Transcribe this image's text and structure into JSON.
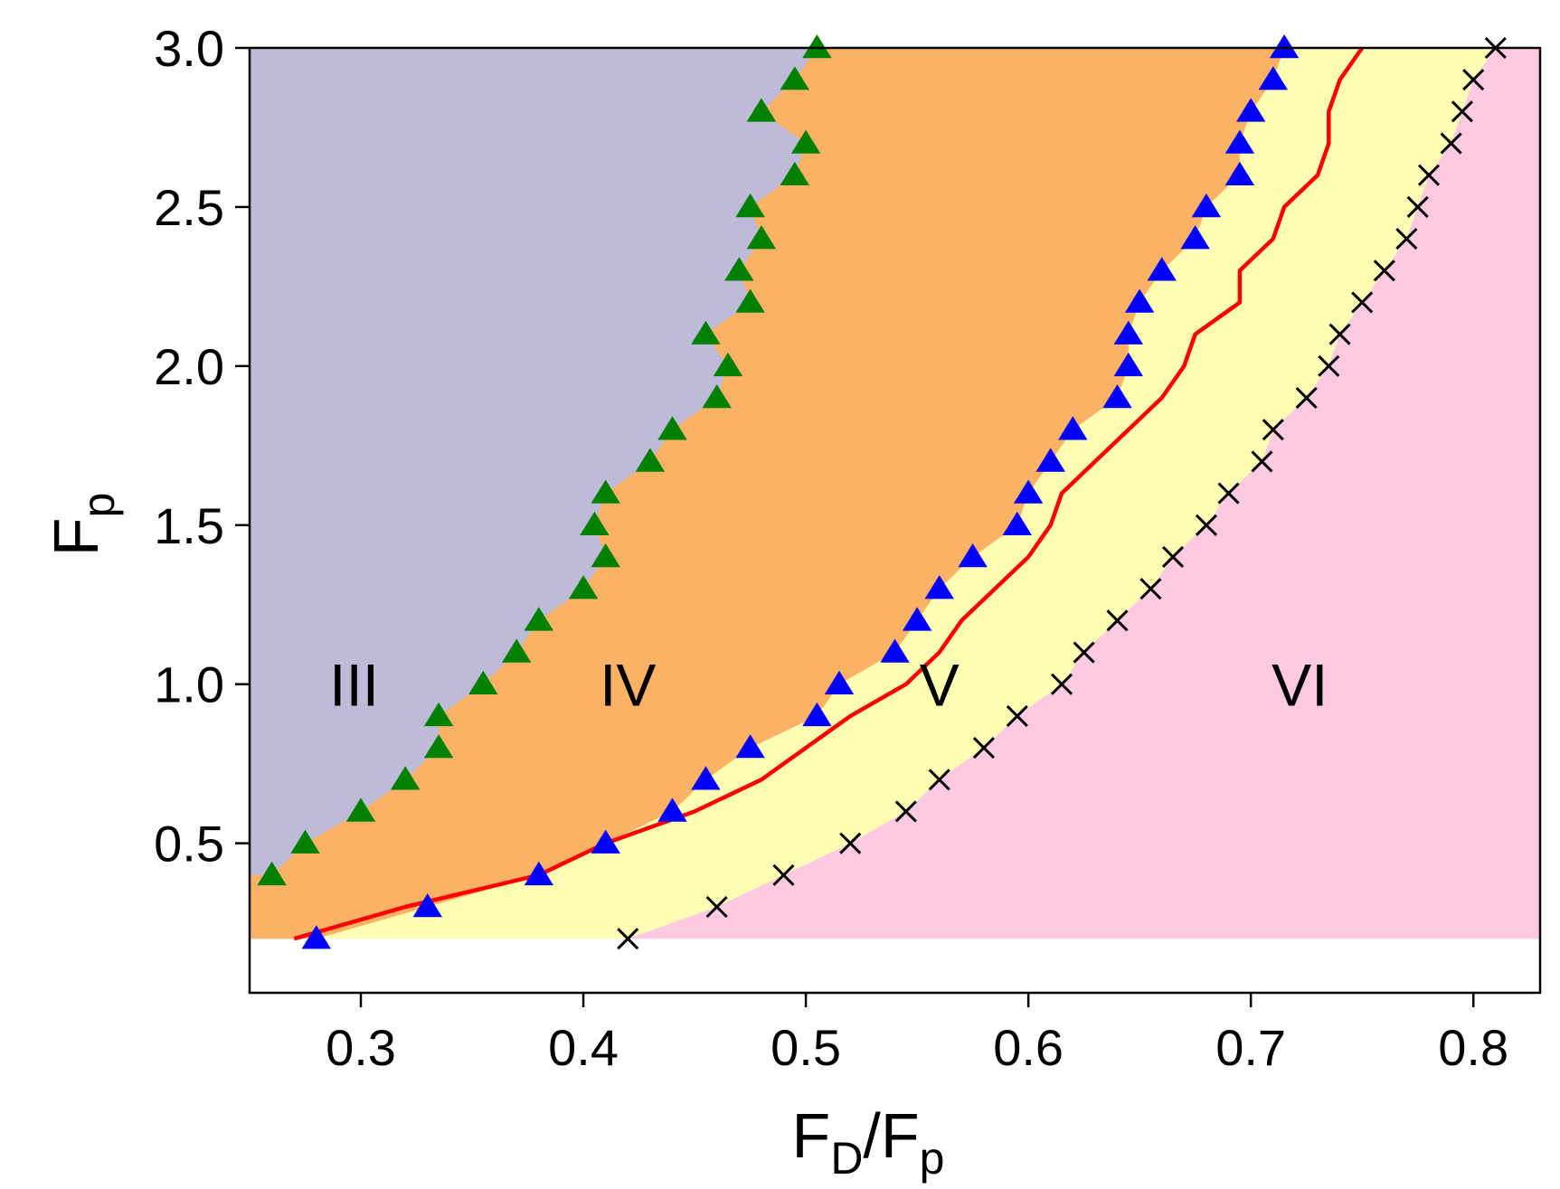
{
  "chart_data": {
    "type": "scatter",
    "title": "",
    "xlabel": "F_D/F_p",
    "ylabel": "F_p",
    "x_label_parts": {
      "f1": "F",
      "s1": "D",
      "sep": "/",
      "f2": "F",
      "s2": "p"
    },
    "y_label_parts": {
      "f": "F",
      "s": "p"
    },
    "xlim": [
      0.25,
      0.83
    ],
    "ylim": [
      0.03,
      3.0
    ],
    "grid": false,
    "x_ticks": [
      {
        "value": 0.3,
        "label": "0.3"
      },
      {
        "value": 0.4,
        "label": "0.4"
      },
      {
        "value": 0.5,
        "label": "0.5"
      },
      {
        "value": 0.6,
        "label": "0.6"
      },
      {
        "value": 0.7,
        "label": "0.7"
      },
      {
        "value": 0.8,
        "label": "0.8"
      }
    ],
    "y_ticks": [
      {
        "value": 0.5,
        "label": "0.5"
      },
      {
        "value": 1.0,
        "label": "1.0"
      },
      {
        "value": 1.5,
        "label": "1.5"
      },
      {
        "value": 2.0,
        "label": "2.0"
      },
      {
        "value": 2.5,
        "label": "2.5"
      },
      {
        "value": 3.0,
        "label": "3.0"
      }
    ],
    "regions": [
      {
        "name": "III",
        "label": "III",
        "color": "#bebbd9",
        "label_at": [
          0.297,
          1.0
        ]
      },
      {
        "name": "IV",
        "label": "IV",
        "color": "#fbb264",
        "label_at": [
          0.42,
          1.0
        ]
      },
      {
        "name": "V",
        "label": "V",
        "color": "#fdfdb4",
        "label_at": [
          0.56,
          1.0
        ]
      },
      {
        "name": "VI",
        "label": "VI",
        "color": "#fdcae2",
        "label_at": [
          0.722,
          1.0
        ]
      }
    ],
    "region_floor": 0.2,
    "series": [
      {
        "name": "III-IV boundary",
        "marker": "triangle",
        "color": "#008000",
        "x": [
          0.26,
          0.275,
          0.3,
          0.32,
          0.335,
          0.335,
          0.355,
          0.37,
          0.38,
          0.4,
          0.41,
          0.405,
          0.41,
          0.43,
          0.44,
          0.46,
          0.465,
          0.455,
          0.475,
          0.47,
          0.48,
          0.475,
          0.495,
          0.5,
          0.48,
          0.495,
          0.505
        ],
        "y": [
          0.4,
          0.5,
          0.6,
          0.7,
          0.8,
          0.9,
          1.0,
          1.1,
          1.2,
          1.3,
          1.4,
          1.5,
          1.6,
          1.7,
          1.8,
          1.9,
          2.0,
          2.1,
          2.2,
          2.3,
          2.4,
          2.5,
          2.6,
          2.7,
          2.8,
          2.9,
          3.0
        ]
      },
      {
        "name": "IV-V boundary",
        "marker": "triangle",
        "color": "#0000ff",
        "x": [
          0.28,
          0.33,
          0.38,
          0.41,
          0.44,
          0.455,
          0.475,
          0.505,
          0.515,
          0.54,
          0.55,
          0.56,
          0.575,
          0.595,
          0.6,
          0.61,
          0.62,
          0.64,
          0.645,
          0.645,
          0.65,
          0.66,
          0.675,
          0.68,
          0.695,
          0.695,
          0.7,
          0.71,
          0.715
        ],
        "y": [
          0.2,
          0.3,
          0.4,
          0.5,
          0.6,
          0.7,
          0.8,
          0.9,
          1.0,
          1.1,
          1.2,
          1.3,
          1.4,
          1.5,
          1.6,
          1.7,
          1.8,
          1.9,
          2.0,
          2.1,
          2.2,
          2.3,
          2.4,
          2.5,
          2.6,
          2.7,
          2.8,
          2.9,
          3.0
        ]
      },
      {
        "name": "Red curve",
        "marker": "line",
        "color": "#ff0000",
        "x": [
          0.27,
          0.32,
          0.38,
          0.41,
          0.45,
          0.48,
          0.5,
          0.51,
          0.52,
          0.545,
          0.56,
          0.57,
          0.585,
          0.6,
          0.61,
          0.615,
          0.63,
          0.63,
          0.645,
          0.66,
          0.67,
          0.675,
          0.695,
          0.695,
          0.71,
          0.715,
          0.73,
          0.735,
          0.735,
          0.74,
          0.75
        ],
        "y": [
          0.2,
          0.3,
          0.4,
          0.5,
          0.6,
          0.7,
          0.8,
          0.85,
          0.9,
          1.0,
          1.1,
          1.2,
          1.3,
          1.4,
          1.5,
          1.6,
          1.7,
          1.7,
          1.8,
          1.9,
          2.0,
          2.1,
          2.2,
          2.3,
          2.4,
          2.5,
          2.6,
          2.7,
          2.8,
          2.9,
          3.0
        ]
      },
      {
        "name": "V-VI boundary",
        "marker": "x",
        "color": "#000000",
        "x": [
          0.42,
          0.46,
          0.49,
          0.52,
          0.545,
          0.56,
          0.58,
          0.595,
          0.615,
          0.625,
          0.64,
          0.655,
          0.665,
          0.68,
          0.69,
          0.705,
          0.71,
          0.725,
          0.735,
          0.74,
          0.75,
          0.76,
          0.77,
          0.775,
          0.78,
          0.79,
          0.795,
          0.8,
          0.81
        ],
        "y": [
          0.2,
          0.3,
          0.4,
          0.5,
          0.6,
          0.7,
          0.8,
          0.9,
          1.0,
          1.1,
          1.2,
          1.3,
          1.4,
          1.5,
          1.6,
          1.7,
          1.8,
          1.9,
          2.0,
          2.1,
          2.2,
          2.3,
          2.4,
          2.5,
          2.6,
          2.7,
          2.8,
          2.9,
          3.0
        ]
      }
    ]
  }
}
